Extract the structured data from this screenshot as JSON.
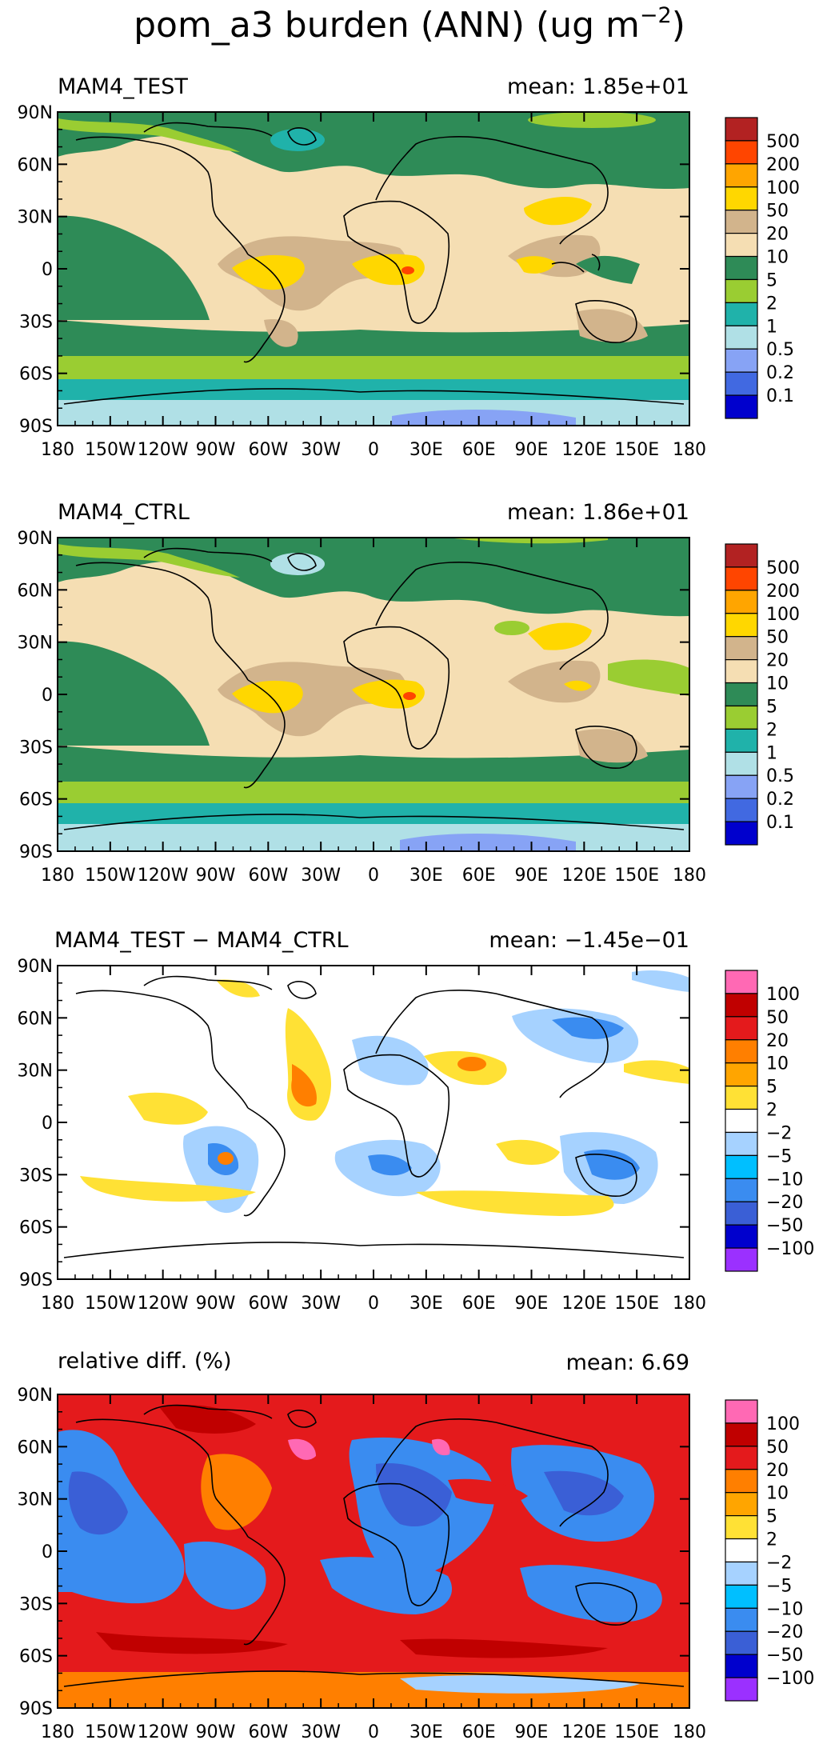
{
  "title": {
    "main": "pom_a3 burden (ANN) (ug m",
    "unit_exp": "−2",
    "close": ")"
  },
  "axes": {
    "x_ticks": [
      "180",
      "150W",
      "120W",
      "90W",
      "60W",
      "30W",
      "0",
      "30E",
      "60E",
      "90E",
      "120E",
      "150E",
      "180"
    ],
    "y_ticks": [
      "90N",
      "60N",
      "30N",
      "0",
      "30S",
      "60S",
      "90S"
    ]
  },
  "colors": {
    "ocean_green": "#2e8b57",
    "land_tan": "#f5deb3",
    "brown": "#d2b48c",
    "yellow": "#ffd700",
    "light_green": "#9acd32",
    "teal": "#20b2aa",
    "pale_cyan": "#b0e0e6",
    "periwinkle": "#87a3f5",
    "blue": "#4169e1",
    "lt_blue": "#a6d2ff",
    "cyan": "#00bfff",
    "mid_blue": "#3a8cf0",
    "royal": "#3a5fd6",
    "dark_blue": "#0000cd",
    "violet": "#9b30ff",
    "pink": "#ff69b4",
    "red": "#e41a1c",
    "dark_red": "#c00000",
    "orange": "#ff7f00",
    "amber": "#ffa500",
    "white": "#ffffff"
  },
  "chart_data": [
    {
      "type": "heatmap",
      "panel_title": "MAM4_TEST",
      "mean_label": "mean:",
      "mean_value": "1.85e+01",
      "xlim": [
        -180,
        180
      ],
      "ylim": [
        -90,
        90
      ],
      "legend_levels": [
        "500",
        "200",
        "100",
        "50",
        "20",
        "10",
        "5",
        "2",
        "1",
        "0.5",
        "0.2",
        "0.1"
      ],
      "legend_colors": [
        "#b22222",
        "#ff4500",
        "#ffa500",
        "#ffd700",
        "#d2b48c",
        "#f5deb3",
        "#2e8b57",
        "#9acd32",
        "#20b2aa",
        "#b0e0e6",
        "#87a3f5",
        "#4169e1",
        "#0000cd"
      ]
    },
    {
      "type": "heatmap",
      "panel_title": "MAM4_CTRL",
      "mean_label": "mean:",
      "mean_value": "1.86e+01",
      "xlim": [
        -180,
        180
      ],
      "ylim": [
        -90,
        90
      ],
      "legend_levels": [
        "500",
        "200",
        "100",
        "50",
        "20",
        "10",
        "5",
        "2",
        "1",
        "0.5",
        "0.2",
        "0.1"
      ],
      "legend_colors": [
        "#b22222",
        "#ff4500",
        "#ffa500",
        "#ffd700",
        "#d2b48c",
        "#f5deb3",
        "#2e8b57",
        "#9acd32",
        "#20b2aa",
        "#b0e0e6",
        "#87a3f5",
        "#4169e1",
        "#0000cd"
      ]
    },
    {
      "type": "heatmap",
      "panel_title": "MAM4_TEST − MAM4_CTRL",
      "mean_label": "mean:",
      "mean_value": "−1.45e−01",
      "xlim": [
        -180,
        180
      ],
      "ylim": [
        -90,
        90
      ],
      "legend_levels": [
        "100",
        "50",
        "20",
        "10",
        "5",
        "2",
        "−2",
        "−5",
        "−10",
        "−20",
        "−50",
        "−100"
      ],
      "legend_colors": [
        "#ff69b4",
        "#c00000",
        "#e41a1c",
        "#ff7f00",
        "#ffa500",
        "#ffe135",
        "#ffffff",
        "#a6d2ff",
        "#00bfff",
        "#3a8cf0",
        "#3a5fd6",
        "#0000cd",
        "#9b30ff"
      ]
    },
    {
      "type": "heatmap",
      "panel_title": "relative diff. (%)",
      "mean_label": "mean:",
      "mean_value": "6.69",
      "xlim": [
        -180,
        180
      ],
      "ylim": [
        -90,
        90
      ],
      "legend_levels": [
        "100",
        "50",
        "20",
        "10",
        "5",
        "2",
        "−2",
        "−5",
        "−10",
        "−20",
        "−50",
        "−100"
      ],
      "legend_colors": [
        "#ff69b4",
        "#c00000",
        "#e41a1c",
        "#ff7f00",
        "#ffa500",
        "#ffe135",
        "#ffffff",
        "#a6d2ff",
        "#00bfff",
        "#3a8cf0",
        "#3a5fd6",
        "#0000cd",
        "#9b30ff"
      ]
    }
  ]
}
